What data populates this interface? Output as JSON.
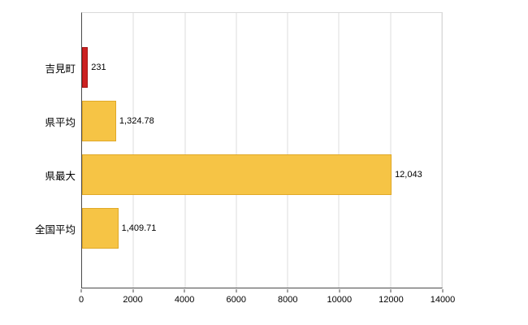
{
  "chart_data": {
    "type": "bar",
    "orientation": "horizontal",
    "title": "",
    "xlabel": "",
    "ylabel": "",
    "categories": [
      "吉見町",
      "県平均",
      "県最大",
      "全国平均"
    ],
    "values": [
      231,
      1324.78,
      12043,
      1409.71
    ],
    "value_labels": [
      "231",
      "1,324.78",
      "12,043",
      "1,409.71"
    ],
    "bar_colors": [
      "#cc2222",
      "#f6c445",
      "#f6c445",
      "#f6c445"
    ],
    "bar_border_colors": [
      "#a31414",
      "#e0a928",
      "#e0a928",
      "#e0a928"
    ],
    "xlim": [
      0,
      14000
    ],
    "x_ticks": [
      0,
      2000,
      4000,
      6000,
      8000,
      10000,
      12000,
      14000
    ],
    "x_tick_labels": [
      "0",
      "2000",
      "4000",
      "6000",
      "8000",
      "10000",
      "12000",
      "14000"
    ],
    "grid": true,
    "legend": "none",
    "background_color": "#ffffff",
    "grid_color": "#dcdcdc",
    "axis_color": "#4a4a4a"
  }
}
